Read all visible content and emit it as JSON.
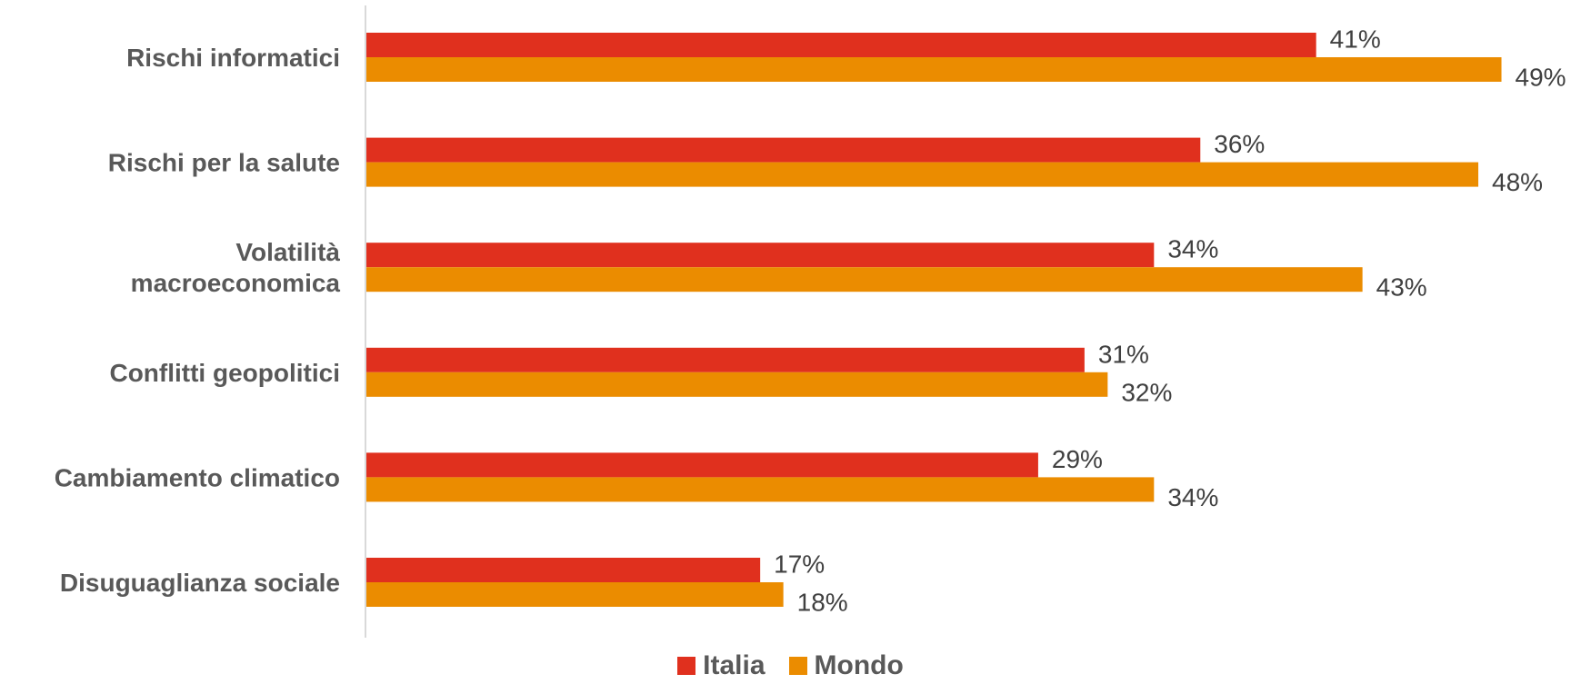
{
  "chart_data": {
    "type": "bar",
    "orientation": "horizontal",
    "categories": [
      [
        "Rischi informatici"
      ],
      [
        "Rischi per la salute"
      ],
      [
        "Volatilità",
        "macroeconomica"
      ],
      [
        "Conflitti geopolitici"
      ],
      [
        "Cambiamento climatico"
      ],
      [
        "Disuguaglianza sociale"
      ]
    ],
    "series": [
      {
        "name": "Italia",
        "color": "#E0301E",
        "values": [
          41,
          36,
          34,
          31,
          29,
          17
        ],
        "labels": [
          "41%",
          "36%",
          "34%",
          "31%",
          "29%",
          "17%"
        ]
      },
      {
        "name": "Mondo",
        "color": "#EB8C00",
        "values": [
          49,
          48,
          43,
          32,
          34,
          18
        ],
        "labels": [
          "49%",
          "48%",
          "43%",
          "32%",
          "34%",
          "18%"
        ]
      }
    ],
    "xlim": [
      0,
      49
    ],
    "grid": false,
    "legend_position": "bottom"
  }
}
